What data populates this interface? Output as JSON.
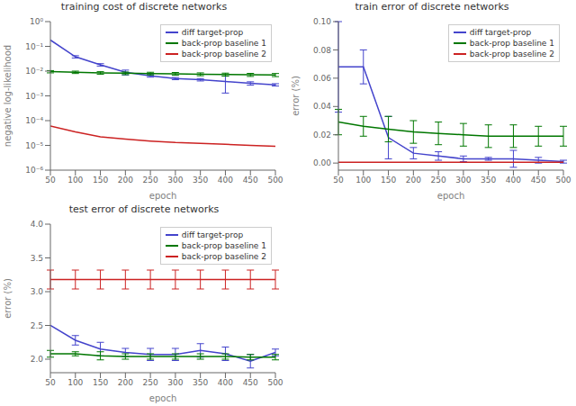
{
  "chart_data": [
    {
      "type": "line",
      "title": "training cost of discrete networks",
      "xlabel": "epoch",
      "ylabel": "negative log-likelihood",
      "x": [
        50,
        100,
        150,
        200,
        250,
        300,
        350,
        400,
        450,
        500
      ],
      "series": [
        {
          "name": "diff target-prop",
          "color": "#4444cc",
          "values": [
            0.18,
            0.038,
            0.018,
            0.009,
            0.0065,
            0.005,
            0.0045,
            0.0038,
            0.0032,
            0.0028
          ],
          "error": [
            0.0,
            0.004,
            0.002,
            0.002,
            0.0008,
            0.0005,
            0.0005,
            0.0025,
            0.0005,
            0.0003
          ]
        },
        {
          "name": "back-prop baseline 1",
          "color": "#007700",
          "values": [
            0.0095,
            0.009,
            0.0085,
            0.0082,
            0.008,
            0.0078,
            0.0075,
            0.0073,
            0.0071,
            0.007
          ],
          "error": [
            0.001,
            0.001,
            0.001,
            0.001,
            0.001,
            0.001,
            0.001,
            0.001,
            0.001,
            0.001
          ]
        },
        {
          "name": "back-prop baseline 2",
          "color": "#cc2222",
          "values": [
            6e-05,
            3.5e-05,
            2.2e-05,
            1.8e-05,
            1.5e-05,
            1.3e-05,
            1.2e-05,
            1.1e-05,
            1e-05,
            9.2e-06
          ]
        }
      ],
      "xlim": [
        50,
        500
      ],
      "xticks": [
        50,
        100,
        150,
        200,
        250,
        300,
        350,
        400,
        450,
        500
      ],
      "ylim": [
        1e-06,
        1
      ],
      "yticks": [
        {
          "value": 1e-06,
          "label": "10⁻⁶"
        },
        {
          "value": 1e-05,
          "label": "10⁻⁵"
        },
        {
          "value": 0.0001,
          "label": "10⁻⁴"
        },
        {
          "value": 0.001,
          "label": "10⁻³"
        },
        {
          "value": 0.01,
          "label": "10⁻²"
        },
        {
          "value": 0.1,
          "label": "10⁻¹"
        },
        {
          "value": 1,
          "label": "10⁰"
        }
      ],
      "log": "y",
      "grid": false,
      "legend": "upper right"
    },
    {
      "type": "line",
      "title": "train error of discrete networks",
      "xlabel": "epoch",
      "ylabel": "error (%)",
      "x": [
        50,
        100,
        150,
        200,
        250,
        300,
        350,
        400,
        450,
        500
      ],
      "series": [
        {
          "name": "diff target-prop",
          "color": "#4444cc",
          "values": [
            0.068,
            0.068,
            0.018,
            0.007,
            0.005,
            0.003,
            0.003,
            0.003,
            0.002,
            0.001
          ],
          "error": [
            0.032,
            0.012,
            0.015,
            0.004,
            0.003,
            0.002,
            0.001,
            0.006,
            0.002,
            0.001
          ]
        },
        {
          "name": "back-prop baseline 1",
          "color": "#007700",
          "values": [
            0.029,
            0.026,
            0.024,
            0.022,
            0.021,
            0.02,
            0.019,
            0.019,
            0.019,
            0.019
          ],
          "error": [
            0.009,
            0.007,
            0.009,
            0.008,
            0.008,
            0.008,
            0.008,
            0.008,
            0.007,
            0.007
          ]
        },
        {
          "name": "back-prop baseline 2",
          "color": "#cc2222",
          "values": [
            0.0005,
            0.0005,
            0.0005,
            0.0005,
            0.0005,
            0.0005,
            0.0005,
            0.0005,
            0.0005,
            0.0005
          ]
        }
      ],
      "xlim": [
        50,
        500
      ],
      "xticks": [
        50,
        100,
        150,
        200,
        250,
        300,
        350,
        400,
        450,
        500
      ],
      "ylim": [
        -0.005,
        0.1
      ],
      "yticks": [
        {
          "value": 0,
          "label": "0.00"
        },
        0.02,
        0.04,
        0.06,
        0.08,
        {
          "value": 0.1,
          "label": "0.10"
        }
      ],
      "grid": false,
      "legend": "upper right"
    },
    {
      "type": "line",
      "title": "test error of discrete networks",
      "xlabel": "epoch",
      "ylabel": "error (%)",
      "x": [
        50,
        100,
        150,
        200,
        250,
        300,
        350,
        400,
        450,
        500
      ],
      "series": [
        {
          "name": "diff target-prop",
          "color": "#4444cc",
          "values": [
            2.5,
            2.28,
            2.15,
            2.1,
            2.07,
            2.07,
            2.13,
            2.08,
            1.97,
            2.1
          ],
          "error": [
            0.0,
            0.07,
            0.1,
            0.06,
            0.09,
            0.09,
            0.1,
            0.1,
            0.1,
            0.05
          ]
        },
        {
          "name": "back-prop baseline 1",
          "color": "#007700",
          "values": [
            2.08,
            2.08,
            2.05,
            2.04,
            2.04,
            2.04,
            2.04,
            2.04,
            2.03,
            2.03
          ],
          "error": [
            0.05,
            0.03,
            0.06,
            0.04,
            0.04,
            0.04,
            0.04,
            0.04,
            0.04,
            0.04
          ]
        },
        {
          "name": "back-prop baseline 2",
          "color": "#cc2222",
          "values": [
            3.18,
            3.18,
            3.18,
            3.18,
            3.18,
            3.18,
            3.18,
            3.18,
            3.18,
            3.18
          ],
          "error": [
            0.14,
            0.14,
            0.14,
            0.14,
            0.14,
            0.14,
            0.14,
            0.14,
            0.14,
            0.14
          ]
        }
      ],
      "xlim": [
        50,
        500
      ],
      "xticks": [
        50,
        100,
        150,
        200,
        250,
        300,
        350,
        400,
        450,
        500
      ],
      "ylim": [
        1.8,
        4.0
      ],
      "yticks": [
        {
          "value": 2.0,
          "label": "2.0"
        },
        2.5,
        {
          "value": 3.0,
          "label": "3.0"
        },
        3.5,
        {
          "value": 4.0,
          "label": "4.0"
        }
      ],
      "grid": false,
      "legend": "upper right"
    }
  ]
}
